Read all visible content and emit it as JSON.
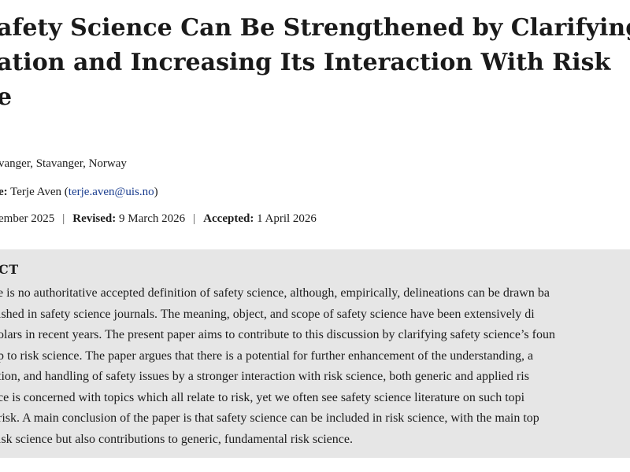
{
  "article": {
    "title_lines": [
      "afety Science Can Be Strengthened by Clarifying",
      "ation and Increasing Its Interaction With Risk",
      "e"
    ],
    "affiliation": "vanger, Stavanger, Norway",
    "correspondence_label": "e:",
    "correspondence_name": "Terje Aven",
    "correspondence_email": "terje.aven@uis.no",
    "dates": {
      "received_value": "ember 2025",
      "revised_label": "Revised:",
      "revised_value": "9 March 2026",
      "accepted_label": "Accepted:",
      "accepted_value": "1 April 2026",
      "separator": "|"
    },
    "abstract_heading": "CT",
    "abstract_lines": [
      "e is no authoritative accepted definition of safety science, although, empirically, delineations can be drawn ba",
      "ished in safety science journals. The meaning, object, and scope of safety science have been extensively di",
      "olars in recent years. The present paper aims to contribute to this discussion by clarifying safety science’s foun",
      "p to risk science. The paper argues that there is a potential for further enhancement of the understanding, a",
      "tion, and handling of safety issues by a stronger interaction with risk science, both generic and applied ris",
      "ce is concerned with topics which all relate to risk, yet we often see safety science literature on such topi",
      "risk. A main conclusion of the paper is that safety science can be included in risk science, with the main top",
      "isk science but also contributions to generic, fundamental risk science."
    ]
  }
}
